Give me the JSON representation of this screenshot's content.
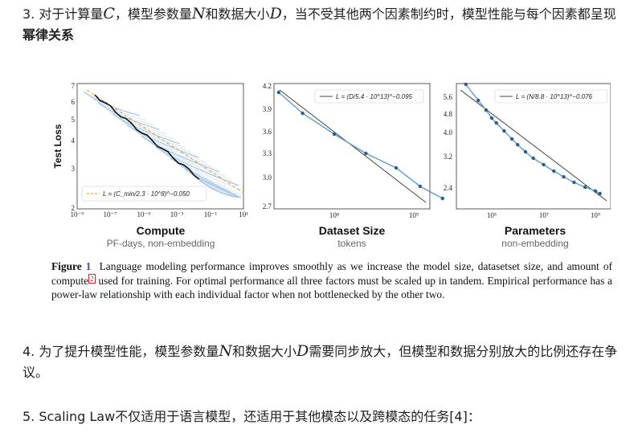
{
  "paragraphs": {
    "p3": {
      "a": "3. 对于计算量",
      "C": "C",
      "b": "，模型参数量",
      "N": "N",
      "c": "和数据大小",
      "D": "D",
      "d": "，当不受其他两个因素制约时，模型性能与每个因素都呈现",
      "bold": "幂律关系"
    },
    "p4": {
      "a": "4. 为了提升模型性能，模型参数量",
      "N": "N",
      "b": "和数据大小",
      "D": "D",
      "c": "需要同步放大，但模型和数据分别放大的比例还存在争议。"
    },
    "p5": {
      "text": "5. Scaling Law不仅适用于语言模型，还适用于其他模态以及跨模态的任务[4]："
    }
  },
  "figure": {
    "panels": [
      {
        "title": "Compute",
        "subtitle": "PF-days, non-embedding",
        "ylabel": "Test Loss",
        "legend": "L = (C_min/2.3 · 10^8)^−0.050",
        "scale": "loglog",
        "yticks": [
          "7",
          "6",
          "5",
          "4",
          "3",
          "2"
        ],
        "xticks": [
          "10⁻⁹",
          "10⁻⁷",
          "10⁻⁵",
          "10⁻³",
          "10⁻¹",
          "10¹"
        ]
      },
      {
        "title": "Dataset Size",
        "subtitle": "tokens",
        "legend": "L = (D/5.4 · 10^13)^−0.095",
        "yticks": [
          "4.2",
          "3.9",
          "3.6",
          "3.3",
          "3.0",
          "2.7"
        ],
        "xticks": [
          "10⁸",
          "10⁹"
        ],
        "chart_data": {
          "type": "line",
          "x": [
            20000000.0,
            40000000.0,
            100000000.0,
            250000000.0,
            600000000.0,
            1200000000.0,
            2300000000.0
          ],
          "y": [
            4.1,
            3.84,
            3.58,
            3.34,
            3.16,
            2.93,
            2.78
          ]
        }
      },
      {
        "title": "Parameters",
        "subtitle": "non-embedding",
        "legend": "L = (N/8.8 · 10^13)^−0.076",
        "yticks": [
          "5.6",
          "4.8",
          "4.0",
          "3.2",
          "2.4"
        ],
        "xticks": [
          "10⁵",
          "10⁷",
          "10⁹"
        ],
        "chart_data": {
          "type": "line",
          "x": [
            10000.0,
            30000.0,
            60000.0,
            100000.0,
            150000.0,
            300000.0,
            600000.0,
            1000000.0,
            2000000.0,
            4000000.0,
            10000000.0,
            25000000.0,
            60000000.0,
            150000000.0,
            400000000.0,
            1000000000.0,
            1500000000.0
          ],
          "y": [
            5.7,
            5.2,
            4.9,
            4.65,
            4.5,
            4.25,
            4.0,
            3.82,
            3.6,
            3.4,
            3.2,
            3.0,
            2.82,
            2.65,
            2.5,
            2.38,
            2.3
          ]
        }
      }
    ],
    "caption": {
      "label": "Figure",
      "number": "1",
      "text1": "Language modeling performance improves smoothly as we increase the model size, datasetset size, and amount of compute",
      "footnote": "2",
      "text2": " used for training. For optimal performance all three factors must be scaled up in tandem. Empirical performance has a power-law relationship with each individual factor when not bottlenecked by the other two."
    }
  }
}
